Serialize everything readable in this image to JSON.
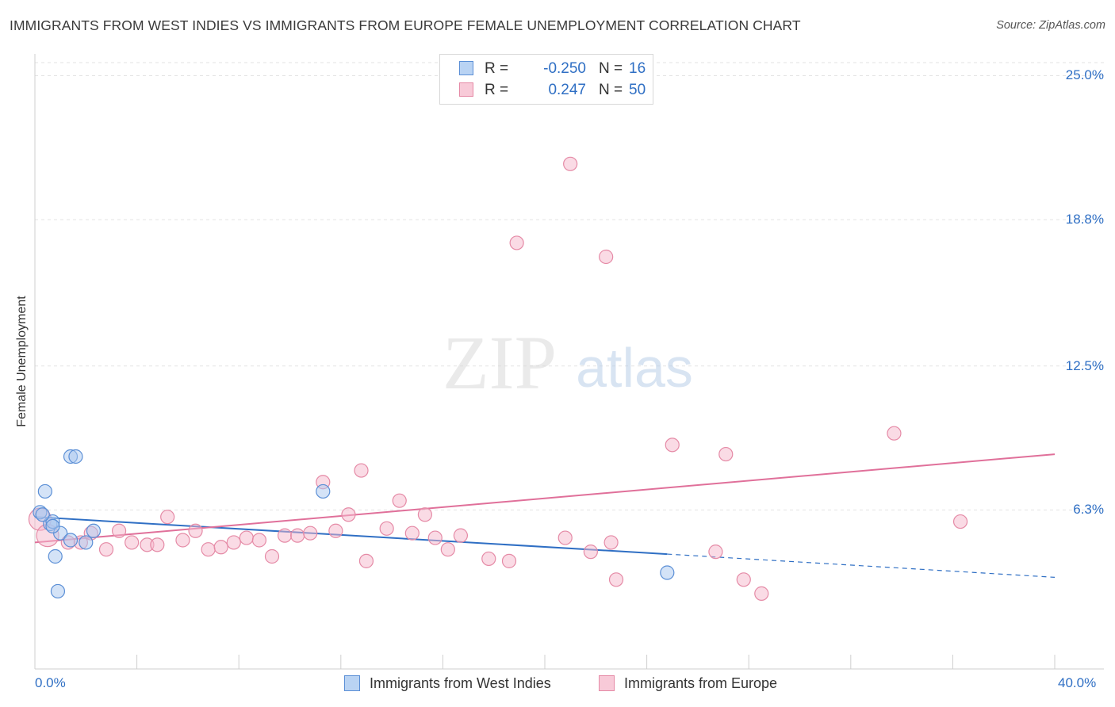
{
  "title": "IMMIGRANTS FROM WEST INDIES VS IMMIGRANTS FROM EUROPE FEMALE UNEMPLOYMENT CORRELATION CHART",
  "source": "Source: ZipAtlas.com",
  "watermark": {
    "zip": "ZIP",
    "atlas": "atlas"
  },
  "legend": {
    "rows": [
      {
        "r_label": "R =",
        "r_value": "-0.250",
        "n_label": "N =",
        "n_value": "16",
        "color": "#a9c8ef"
      },
      {
        "r_label": "R =",
        "r_value": "0.247",
        "n_label": "N =",
        "n_value": "50",
        "color": "#f5b8cb"
      }
    ]
  },
  "chart_data": {
    "type": "scatter",
    "title": "IMMIGRANTS FROM WEST INDIES VS IMMIGRANTS FROM EUROPE FEMALE UNEMPLOYMENT CORRELATION CHART",
    "xlabel": "",
    "ylabel": "Female Unemployment",
    "xlim": [
      0,
      40
    ],
    "ylim": [
      0,
      25.8
    ],
    "x_tick_labels": [
      "0.0%",
      "40.0%"
    ],
    "y_ticks": [
      6.3,
      12.5,
      18.8,
      25.0
    ],
    "y_tick_labels": [
      "6.3%",
      "12.5%",
      "18.8%",
      "25.0%"
    ],
    "grid": "horizontal dashed",
    "legend_position": "top-center",
    "series": [
      {
        "name": "Immigrants from West Indies",
        "color": "#a9c8ef",
        "edge": "#5b8fd6",
        "line_color": "#2f6fc4",
        "trend": {
          "x_start": 0,
          "y_start": 6.0,
          "x_end": 24.8,
          "y_end": 4.4,
          "dashed_to_x": 40,
          "dashed_to_y": 3.4
        },
        "points": [
          [
            0.2,
            6.2
          ],
          [
            0.4,
            7.1
          ],
          [
            0.6,
            5.7
          ],
          [
            0.7,
            5.8
          ],
          [
            0.8,
            4.3
          ],
          [
            0.9,
            2.8
          ],
          [
            1.0,
            5.3
          ],
          [
            1.4,
            8.6
          ],
          [
            1.6,
            8.6
          ],
          [
            1.4,
            5.0
          ],
          [
            2.0,
            4.9
          ],
          [
            2.3,
            5.4
          ],
          [
            11.3,
            7.1
          ],
          [
            24.8,
            3.6
          ],
          [
            0.3,
            6.1
          ],
          [
            0.7,
            5.6
          ]
        ]
      },
      {
        "name": "Immigrants from Europe",
        "color": "#f5b8cb",
        "edge": "#e58aa6",
        "line_color": "#e0709a",
        "trend": {
          "x_start": 0,
          "y_start": 4.9,
          "x_end": 40,
          "y_end": 8.7
        },
        "points": [
          [
            0.2,
            5.9
          ],
          [
            0.5,
            5.2
          ],
          [
            1.3,
            4.9
          ],
          [
            1.8,
            4.9
          ],
          [
            2.2,
            5.3
          ],
          [
            2.8,
            4.6
          ],
          [
            3.3,
            5.4
          ],
          [
            3.8,
            4.9
          ],
          [
            4.4,
            4.8
          ],
          [
            4.8,
            4.8
          ],
          [
            5.2,
            6.0
          ],
          [
            5.8,
            5.0
          ],
          [
            6.3,
            5.4
          ],
          [
            6.8,
            4.6
          ],
          [
            7.3,
            4.7
          ],
          [
            7.8,
            4.9
          ],
          [
            8.3,
            5.1
          ],
          [
            8.8,
            5.0
          ],
          [
            9.3,
            4.3
          ],
          [
            9.8,
            5.2
          ],
          [
            10.3,
            5.2
          ],
          [
            10.8,
            5.3
          ],
          [
            11.3,
            7.5
          ],
          [
            11.8,
            5.4
          ],
          [
            12.3,
            6.1
          ],
          [
            12.8,
            8.0
          ],
          [
            13.0,
            4.1
          ],
          [
            13.8,
            5.5
          ],
          [
            14.3,
            6.7
          ],
          [
            14.8,
            5.3
          ],
          [
            15.3,
            6.1
          ],
          [
            15.7,
            5.1
          ],
          [
            16.2,
            4.6
          ],
          [
            16.7,
            5.2
          ],
          [
            17.8,
            4.2
          ],
          [
            18.6,
            4.1
          ],
          [
            18.9,
            17.8
          ],
          [
            20.8,
            5.1
          ],
          [
            21.0,
            21.2
          ],
          [
            21.8,
            4.5
          ],
          [
            22.4,
            17.2
          ],
          [
            22.6,
            4.9
          ],
          [
            22.8,
            3.3
          ],
          [
            25.0,
            9.1
          ],
          [
            26.7,
            4.5
          ],
          [
            27.1,
            8.7
          ],
          [
            27.8,
            3.3
          ],
          [
            28.5,
            2.7
          ],
          [
            33.7,
            9.6
          ],
          [
            36.3,
            5.8
          ]
        ]
      }
    ]
  },
  "bottom_legend": [
    {
      "label": "Immigrants from West Indies",
      "color": "#a9c8ef",
      "edge": "#5b8fd6"
    },
    {
      "label": "Immigrants from Europe",
      "color": "#f5b8cb",
      "edge": "#e58aa6"
    }
  ]
}
